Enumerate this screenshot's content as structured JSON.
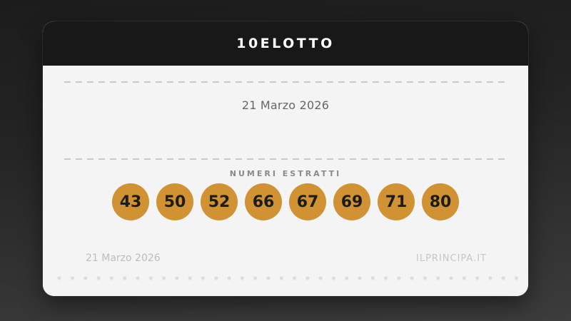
{
  "card": {
    "title": "10ELOTTO",
    "draw_date": "21 Marzo 2026",
    "section_label": "NUMERI ESTRATTI",
    "numbers": [
      "43",
      "50",
      "52",
      "66",
      "67",
      "69",
      "71",
      "80"
    ],
    "footer": {
      "date": "21 Marzo 2026",
      "site": "ILPRINCIPA.IT"
    },
    "colors": {
      "ball": "#d09232",
      "header_bg": "#181818",
      "body_bg": "#f4f4f4",
      "background_top": "#1c1c1c",
      "background_bottom": "#3c3c3c"
    }
  }
}
